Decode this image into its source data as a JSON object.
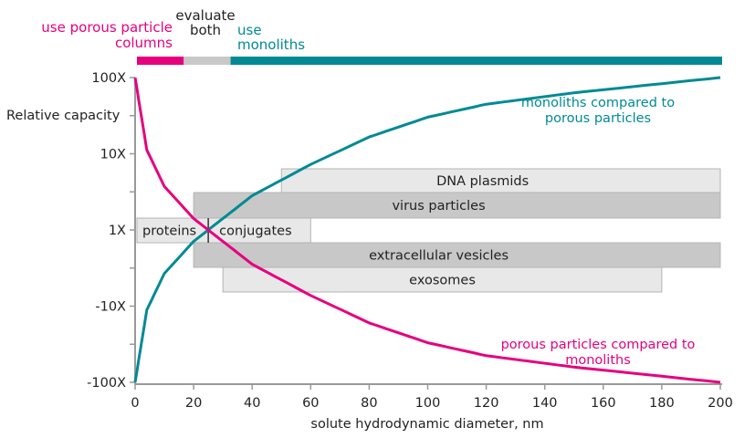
{
  "chart_data": {
    "type": "line",
    "xlabel": "solute hydrodynamic diameter, nm",
    "ylabel": "Relative capacity",
    "xlim": [
      0,
      200
    ],
    "x_ticks": [
      0,
      20,
      40,
      60,
      80,
      100,
      120,
      140,
      160,
      180,
      200
    ],
    "y_scale": "log (symmetric)",
    "y_ticks": [
      {
        "label": "100X",
        "decade": 2
      },
      {
        "label": "10X",
        "decade": 1
      },
      {
        "label": "1X",
        "decade": 0
      },
      {
        "label": "-10X",
        "decade": -1
      },
      {
        "label": "-100X",
        "decade": -2
      }
    ],
    "grid": false,
    "series": [
      {
        "name": "monoliths compared to porous particles",
        "color": "#008a93",
        "x": [
          0,
          4,
          10,
          20,
          25,
          40,
          60,
          80,
          100,
          120,
          150,
          200
        ],
        "y_decade": [
          -2,
          -1.05,
          -0.57,
          -0.15,
          0,
          0.45,
          0.86,
          1.22,
          1.48,
          1.65,
          1.8,
          2
        ]
      },
      {
        "name": "porous particles compared to monoliths",
        "color": "#e6007e",
        "x": [
          0,
          4,
          10,
          20,
          25,
          40,
          60,
          80,
          100,
          120,
          150,
          200
        ],
        "y_decade": [
          2,
          1.05,
          0.57,
          0.15,
          0,
          -0.45,
          -0.86,
          -1.22,
          -1.48,
          -1.65,
          -1.8,
          -2
        ]
      }
    ],
    "bands": [
      {
        "label": "DNA plasmids",
        "from": 50,
        "to": 200,
        "row": 0,
        "shade": "light"
      },
      {
        "label": "virus particles",
        "from": 20,
        "to": 200,
        "row": 1,
        "shade": "dark"
      },
      {
        "label": "proteins",
        "from": 0,
        "to": 25,
        "row": 2,
        "shade": "light"
      },
      {
        "label": "conjugates",
        "from": 25,
        "to": 60,
        "row": 2,
        "shade": "light"
      },
      {
        "label": "extracellular vesicles",
        "from": 20,
        "to": 200,
        "row": 3,
        "shade": "dark"
      },
      {
        "label": "exosomes",
        "from": 30,
        "to": 180,
        "row": 4,
        "shade": "light"
      }
    ],
    "recommendation_bar": [
      {
        "label": "use porous particle columns",
        "from": 0,
        "to": 16,
        "color": "#e6007e"
      },
      {
        "label": "evaluate both",
        "from": 16,
        "to": 32,
        "color": "#c8c8c8"
      },
      {
        "label": "use monoliths",
        "from": 32,
        "to": 200,
        "color": "#008a93"
      }
    ]
  }
}
